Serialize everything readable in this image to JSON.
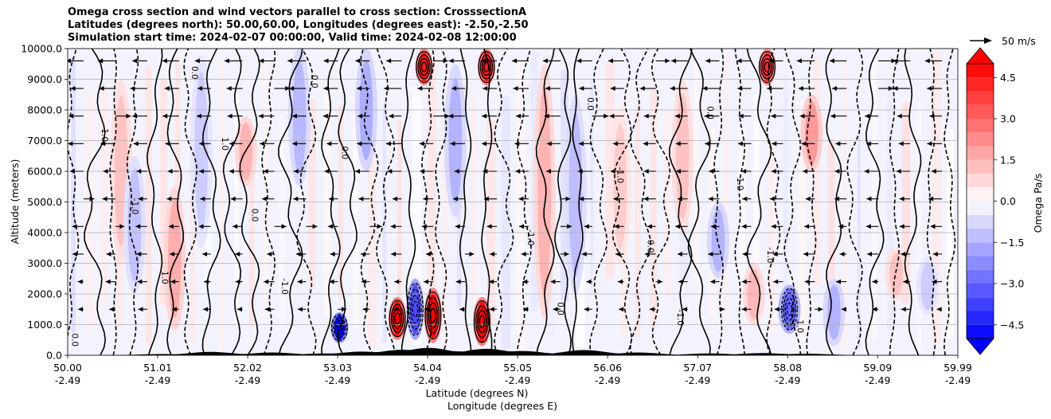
{
  "chart_data": {
    "type": "contour",
    "title_lines": [
      "Omega cross section and wind vectors parallel to cross section: CrosssectionA",
      "Latitudes (degrees north): 50.00,60.00, Longitudes (degrees east): -2.50,-2.50",
      "Simulation start time: 2024-02-07 00:00:00, Valid time: 2024-02-08 12:00:00"
    ],
    "ylabel": "Altitude (meters)",
    "xlabel_lat": "Latitude (degrees N)",
    "xlabel_lon": "Longitude (degrees E)",
    "ylim": [
      0,
      10000
    ],
    "xlim": [
      50.0,
      59.99
    ],
    "y_ticks": [
      "0.0",
      "1000.0",
      "2000.0",
      "3000.0",
      "4000.0",
      "5000.0",
      "6000.0",
      "7000.0",
      "8000.0",
      "9000.0",
      "10000.0"
    ],
    "x_ticks": [
      {
        "lat": "50.00",
        "lon": "-2.49"
      },
      {
        "lat": "51.01",
        "lon": "-2.49"
      },
      {
        "lat": "52.02",
        "lon": "-2.49"
      },
      {
        "lat": "53.03",
        "lon": "-2.49"
      },
      {
        "lat": "54.04",
        "lon": "-2.49"
      },
      {
        "lat": "55.05",
        "lon": "-2.49"
      },
      {
        "lat": "56.06",
        "lon": "-2.49"
      },
      {
        "lat": "57.07",
        "lon": "-2.49"
      },
      {
        "lat": "58.08",
        "lon": "-2.49"
      },
      {
        "lat": "59.09",
        "lon": "-2.49"
      },
      {
        "lat": "59.99",
        "lon": "-2.49"
      }
    ],
    "colorbar": {
      "label": "Omega Pa/s",
      "range": [
        -5.0,
        5.0
      ],
      "ticks": [
        "4.5",
        "3.0",
        "1.5",
        "0.0",
        "−1.5",
        "−3.0",
        "−4.5"
      ],
      "tick_values": [
        4.5,
        3.0,
        1.5,
        0.0,
        -1.5,
        -3.0,
        -4.5
      ],
      "levels": 20,
      "neg_color": "#0000ff",
      "pos_color": "#ff0000",
      "mid_color": "#ffffff"
    },
    "quiver_key": {
      "label": "50 m/s",
      "speed": 50
    },
    "contour_labels": [
      "0.0",
      "-1.0",
      "1.0",
      "0.0",
      "-1.0",
      "0.0",
      "1.0",
      "-1.0",
      "0.0",
      "0.0",
      "1.0",
      "-1.0",
      "0.0",
      "0.0",
      "-1.0",
      "1.0",
      "0.0",
      "-1.0",
      "0.0",
      "1.0"
    ],
    "features": [
      {
        "type": "pos",
        "lat": 50.6,
        "alt_lo": 3000,
        "alt_hi": 9000,
        "value": 1.2
      },
      {
        "type": "neg",
        "lat": 50.75,
        "alt_lo": 2000,
        "alt_hi": 6500,
        "value": -1.2
      },
      {
        "type": "pos",
        "lat": 51.2,
        "alt_lo": 800,
        "alt_hi": 5500,
        "value": 1.6
      },
      {
        "type": "neg",
        "lat": 51.5,
        "alt_lo": 3500,
        "alt_hi": 9800,
        "value": -1.0
      },
      {
        "type": "pos",
        "lat": 52.0,
        "alt_lo": 5500,
        "alt_hi": 7800,
        "value": 1.5
      },
      {
        "type": "neg",
        "lat": 52.6,
        "alt_lo": 5500,
        "alt_hi": 10000,
        "value": -1.4
      },
      {
        "type": "neg",
        "lat": 53.05,
        "alt_lo": 400,
        "alt_hi": 1400,
        "value": -4.8
      },
      {
        "type": "neg",
        "lat": 53.35,
        "alt_lo": 6000,
        "alt_hi": 10000,
        "value": -1.6
      },
      {
        "type": "pos",
        "lat": 53.7,
        "alt_lo": 500,
        "alt_hi": 1900,
        "value": 5.0
      },
      {
        "type": "neg",
        "lat": 53.9,
        "alt_lo": 500,
        "alt_hi": 2500,
        "value": -3.5
      },
      {
        "type": "pos",
        "lat": 54.1,
        "alt_lo": 400,
        "alt_hi": 2200,
        "value": 5.0
      },
      {
        "type": "pos",
        "lat": 54.0,
        "alt_lo": 8800,
        "alt_hi": 10000,
        "value": 4.5
      },
      {
        "type": "pos",
        "lat": 54.65,
        "alt_lo": 300,
        "alt_hi": 1900,
        "value": 5.0
      },
      {
        "type": "pos",
        "lat": 54.7,
        "alt_lo": 8800,
        "alt_hi": 10000,
        "value": 4.5
      },
      {
        "type": "neg",
        "lat": 54.35,
        "alt_lo": 4500,
        "alt_hi": 9500,
        "value": -1.5
      },
      {
        "type": "pos",
        "lat": 55.35,
        "alt_lo": 1200,
        "alt_hi": 9500,
        "value": 1.5
      },
      {
        "type": "neg",
        "lat": 55.7,
        "alt_lo": 2000,
        "alt_hi": 8500,
        "value": -1.3
      },
      {
        "type": "pos",
        "lat": 56.2,
        "alt_lo": 3000,
        "alt_hi": 8000,
        "value": 1.0
      },
      {
        "type": "pos",
        "lat": 56.9,
        "alt_lo": 4000,
        "alt_hi": 9000,
        "value": 1.2
      },
      {
        "type": "neg",
        "lat": 57.3,
        "alt_lo": 2500,
        "alt_hi": 5000,
        "value": -1.5
      },
      {
        "type": "pos",
        "lat": 57.7,
        "alt_lo": 1000,
        "alt_hi": 3000,
        "value": 1.4
      },
      {
        "type": "pos",
        "lat": 57.85,
        "alt_lo": 8800,
        "alt_hi": 10000,
        "value": 4.0
      },
      {
        "type": "neg",
        "lat": 58.1,
        "alt_lo": 700,
        "alt_hi": 2300,
        "value": -3.0
      },
      {
        "type": "pos",
        "lat": 58.35,
        "alt_lo": 6000,
        "alt_hi": 8500,
        "value": 2.0
      },
      {
        "type": "neg",
        "lat": 58.6,
        "alt_lo": 300,
        "alt_hi": 2500,
        "value": -1.5
      },
      {
        "type": "pos",
        "lat": 59.3,
        "alt_lo": 1800,
        "alt_hi": 3500,
        "value": 1.2
      },
      {
        "type": "neg",
        "lat": 59.65,
        "alt_lo": 1300,
        "alt_hi": 3200,
        "value": -1.0
      }
    ]
  }
}
